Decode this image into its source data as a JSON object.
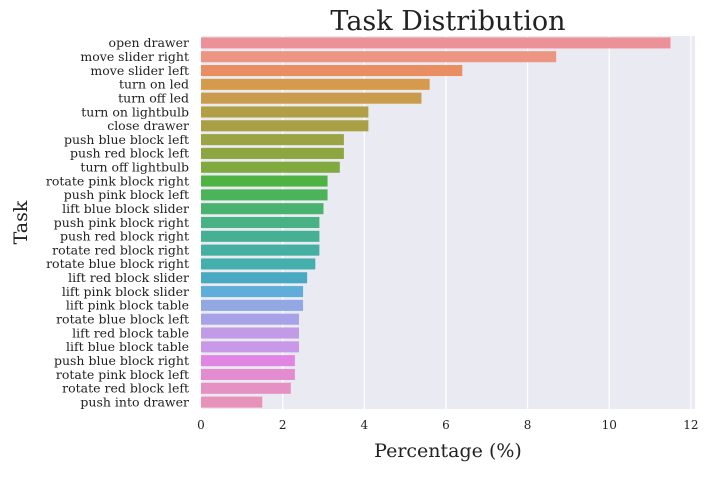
{
  "chart_data": {
    "type": "bar",
    "orientation": "horizontal",
    "title": "Task Distribution",
    "xlabel": "Percentage (%)",
    "ylabel": "Task",
    "xlim": [
      0,
      12.1
    ],
    "xticks": [
      0,
      2,
      4,
      6,
      8,
      10,
      12
    ],
    "grid": true,
    "categories": [
      "open drawer",
      "move slider right",
      "move slider left",
      "turn on led",
      "turn off led",
      "turn on lightbulb",
      "close drawer",
      "push blue block left",
      "push red block left",
      "turn off lightbulb",
      "rotate pink block right",
      "push pink block left",
      "lift blue block slider",
      "push pink block right",
      "push red block right",
      "rotate red block right",
      "rotate blue block right",
      "lift red block slider",
      "lift pink block slider",
      "lift pink block table",
      "rotate blue block left",
      "lift red block table",
      "lift blue block table",
      "push blue block right",
      "rotate pink block left",
      "rotate red block left",
      "push into drawer"
    ],
    "values": [
      11.5,
      8.7,
      6.4,
      5.6,
      5.4,
      4.1,
      4.1,
      3.5,
      3.5,
      3.4,
      3.1,
      3.1,
      3.0,
      2.9,
      2.9,
      2.9,
      2.8,
      2.6,
      2.5,
      2.5,
      2.4,
      2.4,
      2.4,
      2.3,
      2.3,
      2.2,
      1.5
    ],
    "colors": [
      "#ec9198",
      "#ed9583",
      "#e98e62",
      "#d69a4c",
      "#c99c4b",
      "#b19f45",
      "#a9a043",
      "#9aa442",
      "#8ea641",
      "#80aa40",
      "#4fb344",
      "#4bb459",
      "#49b26e",
      "#48b285",
      "#46b094",
      "#45b0a1",
      "#45afad",
      "#49a8c2",
      "#5faed9",
      "#91a8e3",
      "#a8a2e8",
      "#c19be6",
      "#c999e9",
      "#e086e2",
      "#e48cd0",
      "#e691c3",
      "#e892ba"
    ],
    "background_color": "#eaeaf2",
    "grid_color": "#ffffff"
  }
}
